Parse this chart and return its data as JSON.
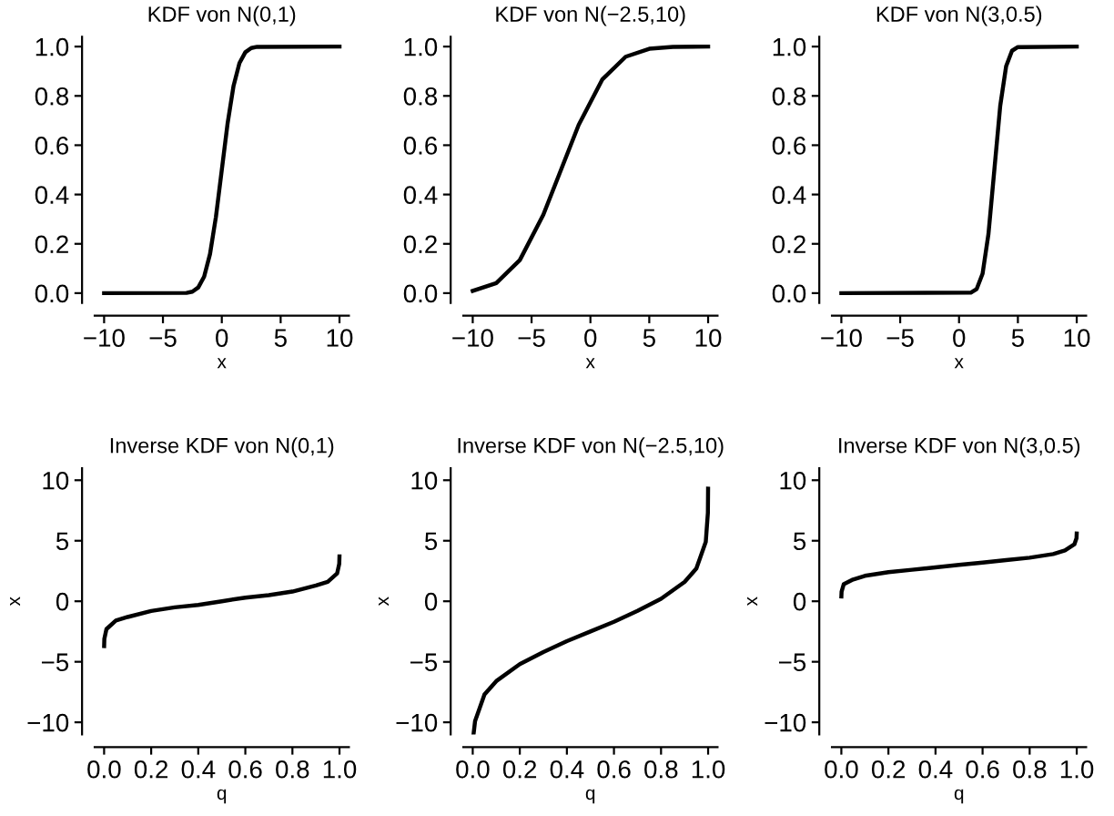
{
  "chart_data": [
    {
      "type": "line",
      "title": "KDF von N(0,1)",
      "xlabel": "x",
      "x": [
        -10,
        -3,
        -2.5,
        -2,
        -1.5,
        -1,
        -0.5,
        0,
        0.5,
        1,
        1.5,
        2,
        2.5,
        3,
        10
      ],
      "series": [
        {
          "color": "#000000",
          "values": [
            0,
            0.001,
            0.006,
            0.023,
            0.067,
            0.159,
            0.309,
            0.5,
            0.691,
            0.841,
            0.933,
            0.977,
            0.994,
            0.999,
            1
          ]
        }
      ],
      "xlim": [
        -10.8,
        10.8
      ],
      "ylim": [
        -0.04,
        1.04
      ],
      "xticks": [
        {
          "value": -10,
          "label": "−10"
        },
        {
          "value": -5,
          "label": "−5"
        },
        0,
        5,
        10
      ],
      "yticks": [
        {
          "value": 0,
          "label": "0.0"
        },
        0.2,
        0.4,
        0.6,
        0.8,
        {
          "value": 1,
          "label": "1.0"
        }
      ],
      "grid": false
    },
    {
      "type": "line",
      "title": "KDF von N(−2.5,10)",
      "xlabel": "x",
      "x": [
        -10,
        -8,
        -6,
        -4,
        -2.5,
        -1,
        1,
        3,
        5,
        7,
        10
      ],
      "series": [
        {
          "color": "#000000",
          "values": [
            0.009,
            0.041,
            0.134,
            0.318,
            0.5,
            0.682,
            0.866,
            0.959,
            0.991,
            0.999,
            1
          ]
        }
      ],
      "xlim": [
        -10.8,
        10.8
      ],
      "ylim": [
        -0.04,
        1.04
      ],
      "xticks": [
        {
          "value": -10,
          "label": "−10"
        },
        {
          "value": -5,
          "label": "−5"
        },
        0,
        5,
        10
      ],
      "yticks": [
        {
          "value": 0,
          "label": "0.0"
        },
        0.2,
        0.4,
        0.6,
        0.8,
        {
          "value": 1,
          "label": "1.0"
        }
      ],
      "grid": false
    },
    {
      "type": "line",
      "title": "KDF von N(3,0.5)",
      "xlabel": "x",
      "x": [
        -10,
        1,
        1.5,
        2,
        2.5,
        3,
        3.5,
        4,
        4.5,
        5,
        10
      ],
      "series": [
        {
          "color": "#000000",
          "values": [
            0,
            0.002,
            0.017,
            0.079,
            0.24,
            0.5,
            0.76,
            0.92,
            0.983,
            0.998,
            1
          ]
        }
      ],
      "xlim": [
        -10.8,
        10.8
      ],
      "ylim": [
        -0.04,
        1.04
      ],
      "xticks": [
        {
          "value": -10,
          "label": "−10"
        },
        {
          "value": -5,
          "label": "−5"
        },
        0,
        5,
        10
      ],
      "yticks": [
        {
          "value": 0,
          "label": "0.0"
        },
        0.2,
        0.4,
        0.6,
        0.8,
        {
          "value": 1,
          "label": "1.0"
        }
      ],
      "grid": false
    },
    {
      "type": "line",
      "title": "Inverse KDF von N(0,1)",
      "xlabel": "q",
      "ylabel": "x",
      "x": [
        0.0001,
        0.001,
        0.01,
        0.05,
        0.1,
        0.2,
        0.3,
        0.4,
        0.5,
        0.6,
        0.7,
        0.8,
        0.9,
        0.95,
        0.99,
        0.999,
        0.9999
      ],
      "series": [
        {
          "color": "#000000",
          "values": [
            -3.7,
            -3.1,
            -2.3,
            -1.6,
            -1.3,
            -0.8,
            -0.5,
            -0.3,
            0,
            0.3,
            0.5,
            0.8,
            1.3,
            1.6,
            2.3,
            3.1,
            3.7
          ]
        }
      ],
      "xlim": [
        -0.04,
        1.04
      ],
      "ylim": [
        -11,
        11
      ],
      "xticks": [
        {
          "value": 0,
          "label": "0.0"
        },
        0.2,
        0.4,
        0.6,
        0.8,
        {
          "value": 1,
          "label": "1.0"
        }
      ],
      "yticks": [
        {
          "value": -10,
          "label": "−10"
        },
        {
          "value": -5,
          "label": "−5"
        },
        0,
        5,
        10
      ],
      "grid": false
    },
    {
      "type": "line",
      "title": "Inverse KDF von N(−2.5,10)",
      "xlabel": "q",
      "ylabel": "x",
      "x": [
        0.004,
        0.01,
        0.05,
        0.1,
        0.2,
        0.3,
        0.4,
        0.5,
        0.6,
        0.7,
        0.8,
        0.9,
        0.95,
        0.99,
        0.999,
        0.9999
      ],
      "series": [
        {
          "color": "#000000",
          "values": [
            -10.9,
            -9.9,
            -7.7,
            -6.6,
            -5.2,
            -4.2,
            -3.3,
            -2.5,
            -1.7,
            -0.8,
            0.2,
            1.6,
            2.7,
            4.9,
            7.3,
            9.3
          ]
        }
      ],
      "xlim": [
        -0.04,
        1.04
      ],
      "ylim": [
        -11,
        11
      ],
      "xticks": [
        {
          "value": 0,
          "label": "0.0"
        },
        0.2,
        0.4,
        0.6,
        0.8,
        {
          "value": 1,
          "label": "1.0"
        }
      ],
      "yticks": [
        {
          "value": -10,
          "label": "−10"
        },
        {
          "value": -5,
          "label": "−5"
        },
        0,
        5,
        10
      ],
      "grid": false
    },
    {
      "type": "line",
      "title": "Inverse KDF von N(3,0.5)",
      "xlabel": "q",
      "ylabel": "x",
      "x": [
        0.0001,
        0.001,
        0.01,
        0.05,
        0.1,
        0.2,
        0.3,
        0.4,
        0.5,
        0.6,
        0.7,
        0.8,
        0.9,
        0.95,
        0.99,
        0.999,
        0.9999
      ],
      "series": [
        {
          "color": "#000000",
          "values": [
            0.4,
            0.8,
            1.4,
            1.8,
            2.1,
            2.4,
            2.6,
            2.8,
            3,
            3.2,
            3.4,
            3.6,
            3.9,
            4.2,
            4.7,
            5.2,
            5.6
          ]
        }
      ],
      "xlim": [
        -0.04,
        1.04
      ],
      "ylim": [
        -11,
        11
      ],
      "xticks": [
        {
          "value": 0,
          "label": "0.0"
        },
        0.2,
        0.4,
        0.6,
        0.8,
        {
          "value": 1,
          "label": "1.0"
        }
      ],
      "yticks": [
        {
          "value": -10,
          "label": "−10"
        },
        {
          "value": -5,
          "label": "−5"
        },
        0,
        5,
        10
      ],
      "grid": false
    }
  ]
}
